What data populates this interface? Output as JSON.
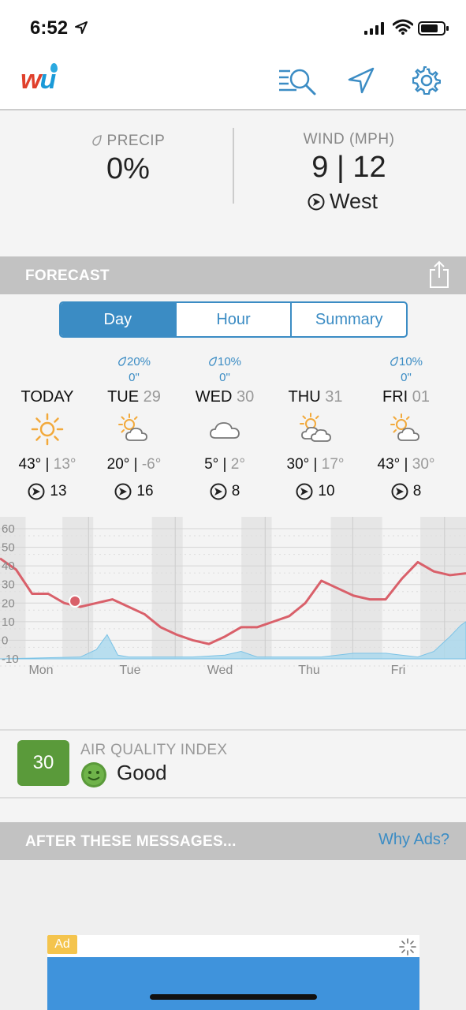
{
  "status_bar": {
    "time": "6:52"
  },
  "header": {
    "logo_w": "w",
    "logo_u": "u"
  },
  "conditions": {
    "precip_label": "PRECIP",
    "precip_value": "0%",
    "wind_label": "WIND (MPH)",
    "wind_value": "9 | 12",
    "wind_direction": "West"
  },
  "forecast": {
    "title": "FORECAST",
    "tabs": [
      {
        "label": "Day",
        "active": true
      },
      {
        "label": "Hour",
        "active": false
      },
      {
        "label": "Summary",
        "active": false
      }
    ],
    "days": [
      {
        "name": "TODAY",
        "date": "",
        "precip_chance": "",
        "precip_amount": "",
        "icon": "sun-icon",
        "high": "43°",
        "low": "13°",
        "wind": "13"
      },
      {
        "name": "TUE",
        "date": "29",
        "precip_chance": "20%",
        "precip_amount": "0\"",
        "icon": "partly-cloudy-icon",
        "high": "20°",
        "low": "-6°",
        "wind": "16"
      },
      {
        "name": "WED",
        "date": "30",
        "precip_chance": "10%",
        "precip_amount": "0\"",
        "icon": "cloud-icon",
        "high": "5°",
        "low": "2°",
        "wind": "8"
      },
      {
        "name": "THU",
        "date": "31",
        "precip_chance": "",
        "precip_amount": "",
        "icon": "mostly-cloudy-icon",
        "high": "30°",
        "low": "17°",
        "wind": "10"
      },
      {
        "name": "FRI",
        "date": "01",
        "precip_chance": "10%",
        "precip_amount": "0\"",
        "icon": "partly-cloudy-icon",
        "high": "43°",
        "low": "30°",
        "wind": "8"
      }
    ]
  },
  "chart_data": {
    "type": "line",
    "ylim": [
      -10,
      60
    ],
    "y_ticks": [
      "60",
      "50",
      "40",
      "30",
      "20",
      "10",
      "0",
      "-10"
    ],
    "x_ticks": [
      "Mon",
      "Tue",
      "Wed",
      "Thu",
      "Fri"
    ],
    "series": [
      {
        "x": [
          0,
          6,
          12,
          18,
          24,
          30,
          36,
          42,
          48,
          54,
          60,
          66,
          72,
          78,
          84,
          90,
          96,
          102,
          108,
          114,
          120,
          126,
          132,
          138,
          144,
          150,
          156,
          162,
          168,
          174
        ],
        "values": [
          44,
          38,
          25,
          25,
          20,
          18,
          20,
          22,
          18,
          14,
          7,
          3,
          0,
          -2,
          2,
          7,
          7,
          10,
          13,
          20,
          32,
          28,
          24,
          22,
          22,
          33,
          42,
          37,
          35,
          36
        ]
      }
    ],
    "precipitation_area": {
      "x": [
        0,
        30,
        36,
        40,
        44,
        48,
        60,
        72,
        84,
        90,
        96,
        120,
        132,
        144,
        156,
        162,
        168,
        172,
        174
      ],
      "values": [
        -10,
        -9,
        -5,
        3,
        -8,
        -9,
        -9,
        -9,
        -8,
        -6,
        -9,
        -9,
        -7,
        -7,
        -9,
        -6,
        2,
        8,
        10
      ]
    },
    "current_x": 28,
    "current_value": 21
  },
  "aqi": {
    "value": "30",
    "label": "AIR QUALITY INDEX",
    "status": "Good"
  },
  "ads": {
    "title": "AFTER THESE MESSAGES...",
    "why_ads": "Why Ads?",
    "ad_tag": "Ad"
  },
  "colors": {
    "accent": "#3b8cc4",
    "temp_line": "#d9606a",
    "aqi_good": "#5a9a3a",
    "precip_area": "#a9d8ee"
  }
}
